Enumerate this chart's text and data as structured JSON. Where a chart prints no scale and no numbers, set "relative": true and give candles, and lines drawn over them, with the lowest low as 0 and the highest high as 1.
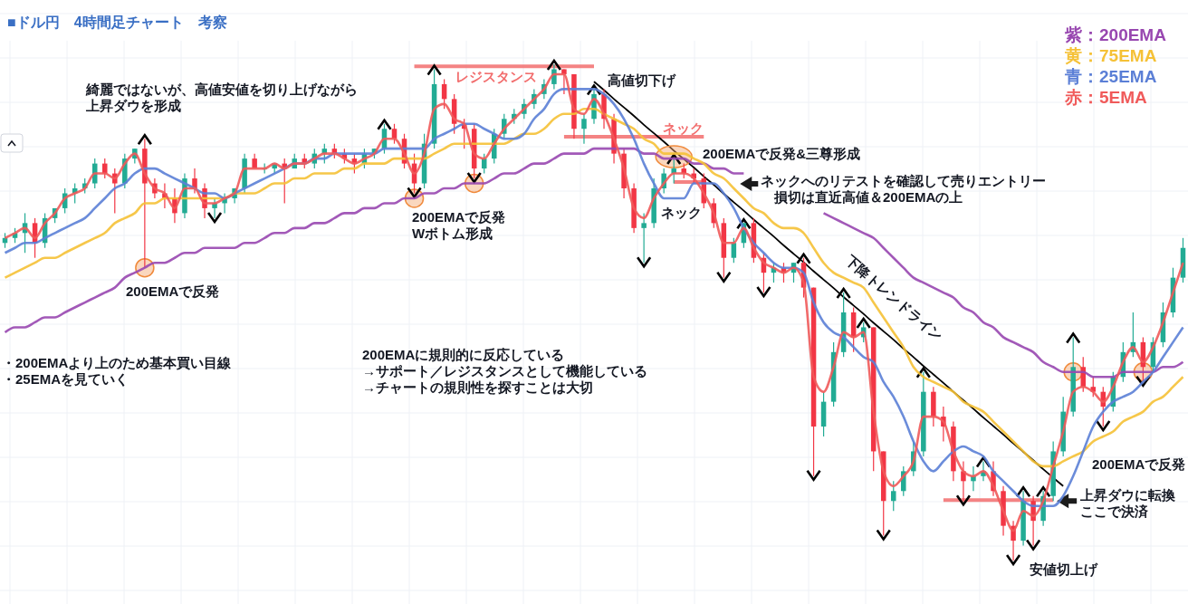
{
  "chart_data": {
    "type": "candlestick",
    "title": "■ドル円　4時間足チャート　考察",
    "relative": true,
    "legend": "top right",
    "categories": [
      null,
      null,
      null,
      null,
      null,
      null,
      null,
      null,
      null,
      null,
      null,
      null,
      null,
      null,
      null,
      null,
      null,
      null,
      null,
      null,
      null,
      null,
      null,
      null,
      null,
      null,
      null,
      null,
      null,
      null,
      null,
      null,
      null,
      null,
      null,
      null,
      null,
      null,
      null,
      null,
      null,
      null,
      null,
      null,
      null,
      null,
      null,
      null,
      null,
      null,
      null,
      null,
      null,
      null,
      null,
      null,
      null,
      null,
      null,
      null,
      null,
      null,
      null,
      null,
      null,
      null,
      null,
      null,
      null,
      null,
      null,
      null,
      null,
      null,
      null,
      null,
      null,
      null,
      null,
      null,
      null,
      null,
      null,
      null,
      null,
      null,
      null,
      null,
      null,
      null,
      null,
      null,
      null,
      null,
      null,
      null,
      null,
      null,
      null,
      null,
      null,
      null,
      null,
      null,
      null,
      null,
      null,
      null,
      null,
      null,
      null,
      null,
      null,
      null,
      null,
      null,
      null,
      null,
      null
    ],
    "ohlc": [
      [
        0.64,
        0.66,
        0.63,
        0.65
      ],
      [
        0.65,
        0.67,
        0.64,
        0.66
      ],
      [
        0.66,
        0.7,
        0.62,
        0.68
      ],
      [
        0.68,
        0.69,
        0.61,
        0.64
      ],
      [
        0.64,
        0.7,
        0.63,
        0.69
      ],
      [
        0.69,
        0.71,
        0.68,
        0.71
      ],
      [
        0.71,
        0.75,
        0.7,
        0.74
      ],
      [
        0.74,
        0.76,
        0.72,
        0.75
      ],
      [
        0.75,
        0.77,
        0.74,
        0.76
      ],
      [
        0.76,
        0.81,
        0.75,
        0.8
      ],
      [
        0.8,
        0.81,
        0.77,
        0.78
      ],
      [
        0.78,
        0.79,
        0.7,
        0.76
      ],
      [
        0.76,
        0.82,
        0.75,
        0.81
      ],
      [
        0.81,
        0.83,
        0.8,
        0.83
      ],
      [
        0.83,
        0.85,
        0.59,
        0.76
      ],
      [
        0.76,
        0.77,
        0.73,
        0.74
      ],
      [
        0.74,
        0.76,
        0.71,
        0.73
      ],
      [
        0.73,
        0.75,
        0.68,
        0.7
      ],
      [
        0.7,
        0.78,
        0.69,
        0.77
      ],
      [
        0.77,
        0.79,
        0.74,
        0.75
      ],
      [
        0.75,
        0.76,
        0.69,
        0.71
      ],
      [
        0.71,
        0.73,
        0.69,
        0.72
      ],
      [
        0.72,
        0.74,
        0.7,
        0.73
      ],
      [
        0.73,
        0.75,
        0.72,
        0.75
      ],
      [
        0.75,
        0.82,
        0.74,
        0.81
      ],
      [
        0.81,
        0.82,
        0.79,
        0.79
      ],
      [
        0.79,
        0.8,
        0.78,
        0.79
      ],
      [
        0.79,
        0.8,
        0.78,
        0.8
      ],
      [
        0.8,
        0.81,
        0.72,
        0.79
      ],
      [
        0.79,
        0.82,
        0.79,
        0.81
      ],
      [
        0.81,
        0.82,
        0.79,
        0.8
      ],
      [
        0.8,
        0.83,
        0.79,
        0.82
      ],
      [
        0.82,
        0.84,
        0.8,
        0.83
      ],
      [
        0.83,
        0.84,
        0.81,
        0.82
      ],
      [
        0.82,
        0.83,
        0.8,
        0.81
      ],
      [
        0.81,
        0.82,
        0.78,
        0.8
      ],
      [
        0.8,
        0.83,
        0.79,
        0.82
      ],
      [
        0.82,
        0.83,
        0.81,
        0.83
      ],
      [
        0.83,
        0.88,
        0.82,
        0.87
      ],
      [
        0.87,
        0.88,
        0.84,
        0.85
      ],
      [
        0.85,
        0.86,
        0.79,
        0.8
      ],
      [
        0.8,
        0.82,
        0.74,
        0.76
      ],
      [
        0.76,
        0.86,
        0.75,
        0.84
      ],
      [
        0.84,
        0.99,
        0.83,
        0.96
      ],
      [
        0.96,
        0.97,
        0.91,
        0.93
      ],
      [
        0.93,
        0.94,
        0.86,
        0.88
      ],
      [
        0.88,
        0.89,
        0.83,
        0.87
      ],
      [
        0.87,
        0.88,
        0.77,
        0.79
      ],
      [
        0.79,
        0.82,
        0.78,
        0.81
      ],
      [
        0.81,
        0.87,
        0.8,
        0.86
      ],
      [
        0.86,
        0.9,
        0.85,
        0.89
      ],
      [
        0.89,
        0.91,
        0.88,
        0.9
      ],
      [
        0.9,
        0.93,
        0.89,
        0.92
      ],
      [
        0.92,
        0.95,
        0.91,
        0.94
      ],
      [
        0.94,
        0.97,
        0.93,
        0.96
      ],
      [
        0.96,
        1,
        0.95,
        0.99
      ],
      [
        0.99,
        0.99,
        0.94,
        0.98
      ],
      [
        0.98,
        0.98,
        0.85,
        0.87
      ],
      [
        0.87,
        0.9,
        0.84,
        0.89
      ],
      [
        0.89,
        0.95,
        0.88,
        0.94
      ],
      [
        0.94,
        0.95,
        0.87,
        0.89
      ],
      [
        0.89,
        0.9,
        0.8,
        0.82
      ],
      [
        0.82,
        0.83,
        0.73,
        0.75
      ],
      [
        0.75,
        0.76,
        0.66,
        0.67
      ],
      [
        0.67,
        0.7,
        0.6,
        0.68
      ],
      [
        0.68,
        0.77,
        0.67,
        0.75
      ],
      [
        0.75,
        0.79,
        0.74,
        0.78
      ],
      [
        0.78,
        0.81,
        0.76,
        0.79
      ],
      [
        0.79,
        0.8,
        0.77,
        0.78
      ],
      [
        0.78,
        0.79,
        0.76,
        0.77
      ],
      [
        0.77,
        0.78,
        0.71,
        0.72
      ],
      [
        0.72,
        0.73,
        0.67,
        0.68
      ],
      [
        0.68,
        0.69,
        0.57,
        0.61
      ],
      [
        0.61,
        0.65,
        0.6,
        0.64
      ],
      [
        0.64,
        0.68,
        0.63,
        0.68
      ],
      [
        0.68,
        0.69,
        0.6,
        0.61
      ],
      [
        0.61,
        0.62,
        0.54,
        0.58
      ],
      [
        0.58,
        0.6,
        0.56,
        0.59
      ],
      [
        0.59,
        0.6,
        0.56,
        0.58
      ],
      [
        0.58,
        0.6,
        0.56,
        0.6
      ],
      [
        0.6,
        0.61,
        0.53,
        0.55
      ],
      [
        0.55,
        0.55,
        0.17,
        0.27
      ],
      [
        0.27,
        0.34,
        0.25,
        0.32
      ],
      [
        0.32,
        0.44,
        0.31,
        0.42
      ],
      [
        0.42,
        0.54,
        0.41,
        0.5
      ],
      [
        0.5,
        0.51,
        0.42,
        0.45
      ],
      [
        0.45,
        0.48,
        0.44,
        0.47
      ],
      [
        0.47,
        0.47,
        0.18,
        0.22
      ],
      [
        0.22,
        0.22,
        0.05,
        0.12
      ],
      [
        0.12,
        0.16,
        0.1,
        0.14
      ],
      [
        0.14,
        0.19,
        0.13,
        0.18
      ],
      [
        0.18,
        0.24,
        0.17,
        0.22
      ],
      [
        0.22,
        0.38,
        0.21,
        0.34
      ],
      [
        0.34,
        0.35,
        0.27,
        0.29
      ],
      [
        0.29,
        0.31,
        0.24,
        0.27
      ],
      [
        0.27,
        0.28,
        0.16,
        0.18
      ],
      [
        0.18,
        0.2,
        0.12,
        0.16
      ],
      [
        0.16,
        0.19,
        0.14,
        0.17
      ],
      [
        0.17,
        0.2,
        0.16,
        0.18
      ],
      [
        0.18,
        0.2,
        0.13,
        0.14
      ],
      [
        0.14,
        0.15,
        0.05,
        0.07
      ],
      [
        0.07,
        0.08,
        0,
        0.04
      ],
      [
        0.04,
        0.14,
        0.03,
        0.12
      ],
      [
        0.12,
        0.13,
        0.03,
        0.08
      ],
      [
        0.08,
        0.14,
        0.07,
        0.13
      ],
      [
        0.13,
        0.24,
        0.12,
        0.22
      ],
      [
        0.22,
        0.33,
        0.21,
        0.3
      ],
      [
        0.3,
        0.45,
        0.29,
        0.39
      ],
      [
        0.39,
        0.41,
        0.34,
        0.35
      ],
      [
        0.35,
        0.37,
        0.33,
        0.34
      ],
      [
        0.34,
        0.35,
        0.27,
        0.31
      ],
      [
        0.31,
        0.38,
        0.3,
        0.37
      ],
      [
        0.37,
        0.44,
        0.36,
        0.42
      ],
      [
        0.42,
        0.5,
        0.41,
        0.44
      ],
      [
        0.44,
        0.45,
        0.36,
        0.39
      ],
      [
        0.39,
        0.45,
        0.38,
        0.44
      ],
      [
        0.44,
        0.52,
        0.43,
        0.5
      ],
      [
        0.5,
        0.59,
        0.49,
        0.57
      ],
      [
        0.57,
        0.65,
        0.56,
        0.63
      ]
    ],
    "series": [
      {
        "name": "紫：200EMA",
        "type": "line",
        "color": "#9847b0",
        "values": [
          0.46,
          0.47,
          0.47,
          0.48,
          0.49,
          0.49,
          0.5,
          0.51,
          0.52,
          0.53,
          0.54,
          0.55,
          0.57,
          0.58,
          0.59,
          0.6,
          0.6,
          0.61,
          0.62,
          0.62,
          0.63,
          0.63,
          0.63,
          0.63,
          0.64,
          0.64,
          0.65,
          0.66,
          0.66,
          0.67,
          0.67,
          0.68,
          0.68,
          0.69,
          0.7,
          0.7,
          0.71,
          0.71,
          0.72,
          0.72,
          0.73,
          0.73,
          0.74,
          0.74,
          0.75,
          0.75,
          0.76,
          0.76,
          0.76,
          0.77,
          0.78,
          0.78,
          0.79,
          0.8,
          0.8,
          0.81,
          0.82,
          0.82,
          0.82,
          0.83,
          0.83,
          0.83,
          0.83,
          0.83,
          0.82,
          0.82,
          0.81,
          0.81,
          0.81,
          0.8,
          0.8,
          0.79,
          0.79,
          0.78,
          0.78,
          null,
          null,
          null,
          null,
          null,
          null,
          null,
          0.7,
          0.69,
          0.68,
          0.67,
          0.66,
          0.65,
          0.63,
          0.61,
          0.59,
          0.57,
          0.56,
          0.55,
          0.54,
          0.53,
          0.51,
          0.5,
          0.48,
          0.47,
          0.45,
          0.44,
          0.43,
          0.42,
          0.4,
          0.39,
          0.38,
          0.38,
          0.38,
          0.37,
          0.37,
          0.37,
          0.38,
          0.38,
          0.38,
          0.38,
          0.39,
          0.39,
          0.4
        ]
      },
      {
        "name": "黄：75EMA",
        "type": "line",
        "color": "#f5c136",
        "values": [
          0.57,
          0.58,
          0.59,
          0.6,
          0.61,
          0.61,
          0.62,
          0.63,
          0.64,
          0.65,
          0.66,
          0.68,
          0.69,
          0.7,
          0.72,
          0.72,
          0.73,
          0.73,
          0.73,
          0.73,
          0.73,
          0.73,
          0.73,
          0.74,
          0.74,
          0.74,
          0.75,
          0.76,
          0.76,
          0.77,
          0.77,
          0.78,
          0.78,
          0.78,
          0.79,
          0.79,
          0.8,
          0.8,
          0.8,
          0.81,
          0.81,
          0.81,
          0.81,
          0.82,
          0.83,
          0.84,
          0.84,
          0.84,
          0.84,
          0.84,
          0.84,
          0.85,
          0.86,
          0.86,
          0.87,
          0.89,
          0.9,
          0.9,
          0.91,
          0.91,
          0.9,
          0.89,
          0.88,
          0.87,
          0.85,
          0.84,
          0.82,
          0.82,
          0.82,
          0.81,
          0.8,
          0.78,
          0.77,
          0.75,
          0.73,
          0.71,
          0.7,
          0.68,
          0.67,
          0.67,
          0.66,
          0.63,
          0.6,
          0.58,
          0.57,
          0.56,
          0.55,
          0.52,
          0.49,
          0.46,
          0.43,
          0.39,
          0.37,
          0.36,
          0.35,
          0.34,
          0.32,
          0.31,
          0.3,
          0.28,
          0.26,
          0.24,
          0.22,
          0.2,
          0.19,
          0.19,
          0.2,
          0.21,
          0.22,
          0.24,
          0.25,
          0.26,
          0.28,
          0.29,
          0.3,
          0.32,
          0.33,
          0.35,
          0.37
        ]
      },
      {
        "name": "青：25EMA",
        "type": "line",
        "color": "#5b7fd6",
        "values": [
          0.62,
          0.63,
          0.64,
          0.64,
          0.65,
          0.66,
          0.67,
          0.68,
          0.69,
          0.71,
          0.73,
          0.75,
          0.76,
          0.78,
          0.79,
          0.79,
          0.78,
          0.77,
          0.76,
          0.75,
          0.74,
          0.74,
          0.73,
          0.74,
          0.75,
          0.76,
          0.77,
          0.78,
          0.79,
          0.8,
          0.8,
          0.81,
          0.81,
          0.82,
          0.82,
          0.82,
          0.82,
          0.82,
          0.83,
          0.83,
          0.83,
          0.83,
          0.83,
          0.85,
          0.86,
          0.87,
          0.88,
          0.88,
          0.87,
          0.86,
          0.85,
          0.85,
          0.86,
          0.89,
          0.91,
          0.94,
          0.95,
          0.95,
          0.95,
          0.95,
          0.94,
          0.92,
          0.89,
          0.85,
          0.8,
          0.76,
          0.73,
          0.73,
          0.73,
          0.76,
          0.76,
          0.76,
          0.74,
          0.71,
          0.67,
          0.64,
          0.62,
          0.6,
          0.59,
          0.59,
          0.58,
          0.52,
          0.48,
          0.46,
          0.45,
          0.43,
          0.41,
          0.4,
          0.36,
          0.33,
          0.29,
          0.24,
          0.2,
          0.18,
          0.2,
          0.22,
          0.23,
          0.22,
          0.21,
          0.18,
          0.16,
          0.14,
          0.12,
          0.11,
          0.11,
          0.11,
          0.13,
          0.17,
          0.22,
          0.27,
          0.3,
          0.32,
          0.33,
          0.34,
          0.36,
          0.38,
          0.41,
          0.44,
          0.47
        ]
      },
      {
        "name": "赤：5EMA",
        "type": "line",
        "color": "#f05a5a",
        "values": [
          0.65,
          0.66,
          0.67,
          0.65,
          0.68,
          0.7,
          0.73,
          0.74,
          0.75,
          0.78,
          0.78,
          0.77,
          0.8,
          0.82,
          0.78,
          0.75,
          0.74,
          0.71,
          0.75,
          0.75,
          0.72,
          0.72,
          0.73,
          0.74,
          0.79,
          0.79,
          0.79,
          0.8,
          0.79,
          0.8,
          0.8,
          0.81,
          0.82,
          0.82,
          0.81,
          0.8,
          0.81,
          0.82,
          0.85,
          0.85,
          0.82,
          0.78,
          0.82,
          0.91,
          0.92,
          0.89,
          0.88,
          0.82,
          0.81,
          0.84,
          0.87,
          0.89,
          0.91,
          0.93,
          0.95,
          0.98,
          0.98,
          0.91,
          0.9,
          0.93,
          0.9,
          0.85,
          0.79,
          0.71,
          0.69,
          0.73,
          0.76,
          0.78,
          0.78,
          0.77,
          0.74,
          0.7,
          0.64,
          0.64,
          0.67,
          0.63,
          0.6,
          0.59,
          0.58,
          0.59,
          0.56,
          0.37,
          0.34,
          0.39,
          0.46,
          0.45,
          0.46,
          0.3,
          0.18,
          0.15,
          0.17,
          0.2,
          0.29,
          0.29,
          0.28,
          0.22,
          0.18,
          0.17,
          0.18,
          0.15,
          0.1,
          0.06,
          0.1,
          0.09,
          0.12,
          0.19,
          0.26,
          0.34,
          0.35,
          0.34,
          0.32,
          0.35,
          0.4,
          0.43,
          0.4,
          0.43,
          0.48,
          0.54,
          0.6
        ]
      },
      {
        "name": "レジスタンス",
        "type": "line",
        "color": "#f26d6d",
        "values": [
          null,
          null,
          null,
          null,
          null,
          null,
          null,
          null,
          null,
          null,
          null,
          null,
          null,
          null,
          null,
          null,
          null,
          null,
          null,
          null,
          null,
          null,
          null,
          null,
          null,
          null,
          null,
          null,
          null,
          null,
          null,
          null,
          null,
          null,
          null,
          null,
          null,
          null,
          null,
          null,
          null,
          0.996,
          0.996,
          0.996,
          0.996,
          0.996,
          0.996,
          0.996,
          0.996,
          0.996,
          0.996,
          0.996,
          0.996,
          0.996,
          0.996,
          0.996,
          0.996,
          0.996,
          0.996,
          0.996,
          null,
          null,
          null,
          null,
          null,
          null,
          null,
          null,
          null,
          null,
          null,
          null,
          null,
          null,
          null,
          null,
          null,
          null,
          null,
          null,
          null,
          null,
          null,
          null,
          null,
          null,
          null,
          null,
          null,
          null,
          null,
          null,
          null,
          null,
          null,
          null,
          null,
          null,
          null,
          null,
          null,
          null,
          null,
          null,
          null,
          null,
          null,
          null,
          null,
          null,
          null,
          null,
          null,
          null,
          null,
          null,
          null,
          null,
          null
        ]
      },
      {
        "name": "ネック",
        "type": "line",
        "color": "#f26d6d",
        "values": [
          null,
          null,
          null,
          null,
          null,
          null,
          null,
          null,
          null,
          null,
          null,
          null,
          null,
          null,
          null,
          null,
          null,
          null,
          null,
          null,
          null,
          null,
          null,
          null,
          null,
          null,
          null,
          null,
          null,
          null,
          null,
          null,
          null,
          null,
          null,
          null,
          null,
          null,
          null,
          null,
          null,
          null,
          null,
          null,
          null,
          null,
          null,
          null,
          null,
          null,
          null,
          null,
          null,
          null,
          null,
          null,
          0.854,
          0.854,
          0.854,
          0.854,
          0.854,
          0.854,
          0.854,
          0.854,
          0.854,
          0.854,
          0.854,
          0.854,
          0.854,
          0.854,
          0.854,
          null,
          null,
          null,
          null,
          null,
          null,
          null,
          null,
          null,
          null,
          null,
          null,
          null,
          null,
          null,
          null,
          null,
          null,
          null,
          null,
          null,
          null,
          null,
          null,
          null,
          null,
          null,
          null,
          null,
          null,
          null,
          null,
          null,
          null,
          null,
          null,
          null,
          null,
          null,
          null,
          null,
          null,
          null,
          null,
          null,
          null,
          null,
          null
        ]
      },
      {
        "type": "line",
        "color": "#f26d6d",
        "values": [
          null,
          null,
          null,
          null,
          null,
          null,
          null,
          null,
          null,
          null,
          null,
          null,
          null,
          null,
          null,
          null,
          null,
          null,
          null,
          null,
          null,
          null,
          null,
          null,
          null,
          null,
          null,
          null,
          null,
          null,
          null,
          null,
          null,
          null,
          null,
          null,
          null,
          null,
          null,
          null,
          null,
          null,
          null,
          null,
          null,
          null,
          null,
          null,
          null,
          null,
          null,
          null,
          null,
          null,
          null,
          null,
          null,
          null,
          null,
          null,
          null,
          null,
          null,
          null,
          null,
          null,
          null,
          0.763,
          0.763,
          0.763,
          0.763,
          null,
          null,
          null,
          null,
          null,
          null,
          null,
          null,
          null,
          null,
          null,
          null,
          null,
          null,
          null,
          null,
          null,
          null,
          null,
          null,
          null,
          null,
          null,
          null,
          null,
          null,
          null,
          null,
          null,
          null,
          null,
          null,
          null,
          null,
          null,
          null,
          null,
          null,
          null,
          null,
          null,
          null,
          null,
          null,
          null,
          null,
          null,
          null
        ]
      },
      {
        "type": "line",
        "color": "#f26d6d",
        "values": [
          null,
          null,
          null,
          null,
          null,
          null,
          null,
          null,
          null,
          null,
          null,
          null,
          null,
          null,
          null,
          null,
          null,
          null,
          null,
          null,
          null,
          null,
          null,
          null,
          null,
          null,
          null,
          null,
          null,
          null,
          null,
          null,
          null,
          null,
          null,
          null,
          null,
          null,
          null,
          null,
          null,
          null,
          null,
          null,
          null,
          null,
          null,
          null,
          null,
          null,
          null,
          null,
          null,
          null,
          null,
          null,
          null,
          null,
          null,
          null,
          null,
          null,
          null,
          null,
          null,
          null,
          null,
          null,
          null,
          null,
          null,
          null,
          null,
          null,
          null,
          null,
          null,
          null,
          null,
          null,
          null,
          null,
          null,
          null,
          null,
          null,
          null,
          null,
          null,
          null,
          null,
          null,
          null,
          null,
          0.122,
          0.122,
          0.122,
          0.122,
          0.122,
          0.122,
          0.122,
          0.122,
          0.122,
          0.122,
          0.122,
          0.122,
          null,
          null,
          null,
          null,
          null,
          null,
          null,
          null,
          null,
          null,
          null,
          null,
          null
        ]
      },
      {
        "name": "下降トレンドライン",
        "type": "line",
        "color": "#000000",
        "values": [
          null,
          null,
          null,
          null,
          null,
          null,
          null,
          null,
          null,
          null,
          null,
          null,
          null,
          null,
          null,
          null,
          null,
          null,
          null,
          null,
          null,
          null,
          null,
          null,
          null,
          null,
          null,
          null,
          null,
          null,
          null,
          null,
          null,
          null,
          null,
          null,
          null,
          null,
          null,
          null,
          null,
          null,
          null,
          null,
          null,
          null,
          null,
          null,
          null,
          null,
          null,
          null,
          null,
          null,
          null,
          null,
          null,
          null,
          null,
          0.965,
          0.948,
          0.93,
          0.913,
          0.896,
          0.878,
          0.861,
          0.844,
          0.826,
          0.809,
          0.792,
          0.774,
          0.757,
          0.739,
          0.722,
          0.705,
          0.687,
          0.67,
          0.653,
          0.635,
          0.618,
          0.601,
          0.583,
          0.566,
          0.549,
          0.531,
          0.514,
          0.497,
          0.479,
          0.462,
          0.445,
          0.427,
          0.41,
          0.392,
          0.375,
          0.358,
          0.34,
          0.323,
          0.306,
          0.288,
          0.271,
          0.254,
          0.236,
          0.219,
          0.202,
          0.184,
          0.167,
          0.15,
          null,
          null,
          null,
          null,
          null,
          null,
          null,
          null,
          null,
          null,
          null,
          null
        ]
      },
      {
        "type": "scatter",
        "color": "#000000",
        "values": [
          null,
          null,
          null,
          null,
          null,
          null,
          null,
          null,
          null,
          null,
          null,
          null,
          null,
          null,
          0.85,
          null,
          null,
          null,
          null,
          null,
          null,
          null,
          null,
          null,
          null,
          null,
          null,
          null,
          null,
          null,
          null,
          null,
          null,
          null,
          null,
          null,
          null,
          null,
          0.88,
          null,
          null,
          null,
          null,
          0.99,
          null,
          null,
          null,
          null,
          null,
          null,
          null,
          null,
          null,
          null,
          null,
          1,
          null,
          null,
          null,
          0.95,
          null,
          null,
          null,
          null,
          null,
          null,
          null,
          0.81,
          null,
          null,
          null,
          null,
          null,
          null,
          0.68,
          null,
          null,
          null,
          null,
          null,
          0.61,
          null,
          null,
          null,
          0.54,
          null,
          0.48,
          null,
          null,
          null,
          null,
          null,
          0.38,
          null,
          null,
          null,
          null,
          null,
          0.2,
          null,
          null,
          null,
          0.14,
          null,
          0.14,
          null,
          null,
          0.45,
          null,
          null,
          null,
          null,
          null,
          null,
          null,
          null,
          null,
          null,
          null
        ]
      },
      {
        "type": "scatter",
        "color": "#000000",
        "values": [
          null,
          null,
          null,
          null,
          null,
          null,
          null,
          null,
          null,
          null,
          null,
          null,
          null,
          null,
          null,
          null,
          null,
          null,
          null,
          null,
          null,
          0.69,
          null,
          null,
          null,
          null,
          null,
          null,
          null,
          null,
          null,
          null,
          null,
          null,
          null,
          null,
          null,
          null,
          null,
          null,
          null,
          0.74,
          null,
          null,
          null,
          null,
          null,
          0.77,
          null,
          null,
          null,
          null,
          null,
          null,
          null,
          null,
          null,
          null,
          null,
          null,
          null,
          null,
          null,
          null,
          0.6,
          null,
          null,
          null,
          null,
          null,
          null,
          null,
          0.57,
          null,
          null,
          null,
          0.54,
          null,
          null,
          null,
          null,
          0.17,
          null,
          null,
          null,
          null,
          null,
          null,
          0.05,
          null,
          null,
          null,
          null,
          null,
          null,
          null,
          0.12,
          null,
          null,
          null,
          null,
          0,
          null,
          0.03,
          null,
          null,
          null,
          null,
          null,
          null,
          0.27,
          null,
          null,
          null,
          0.36,
          null,
          null,
          null,
          null
        ]
      }
    ],
    "annotations": [
      "綺麗ではないが、高値安値を切り上げながら",
      "上昇ダウを形成",
      "高値切下げ",
      "200EMAで反発&三尊形成",
      "ネックへのリテストを確認して売りエントリー",
      "損切は直近高値＆200EMAの上",
      "200EMAで反発",
      "200EMAで反発",
      "Wボトム形成",
      "・200EMAより上のため基本買い目線",
      "・25EMAを見ていく",
      "200EMAに規則的に反応している",
      "→サポート／レジスタンスとして機能している",
      "→チャートの規則性を探すことは大切",
      "200EMAで反発",
      "上昇ダウに転換",
      "ここで決済",
      "安値切上げ",
      "ネック"
    ]
  }
}
